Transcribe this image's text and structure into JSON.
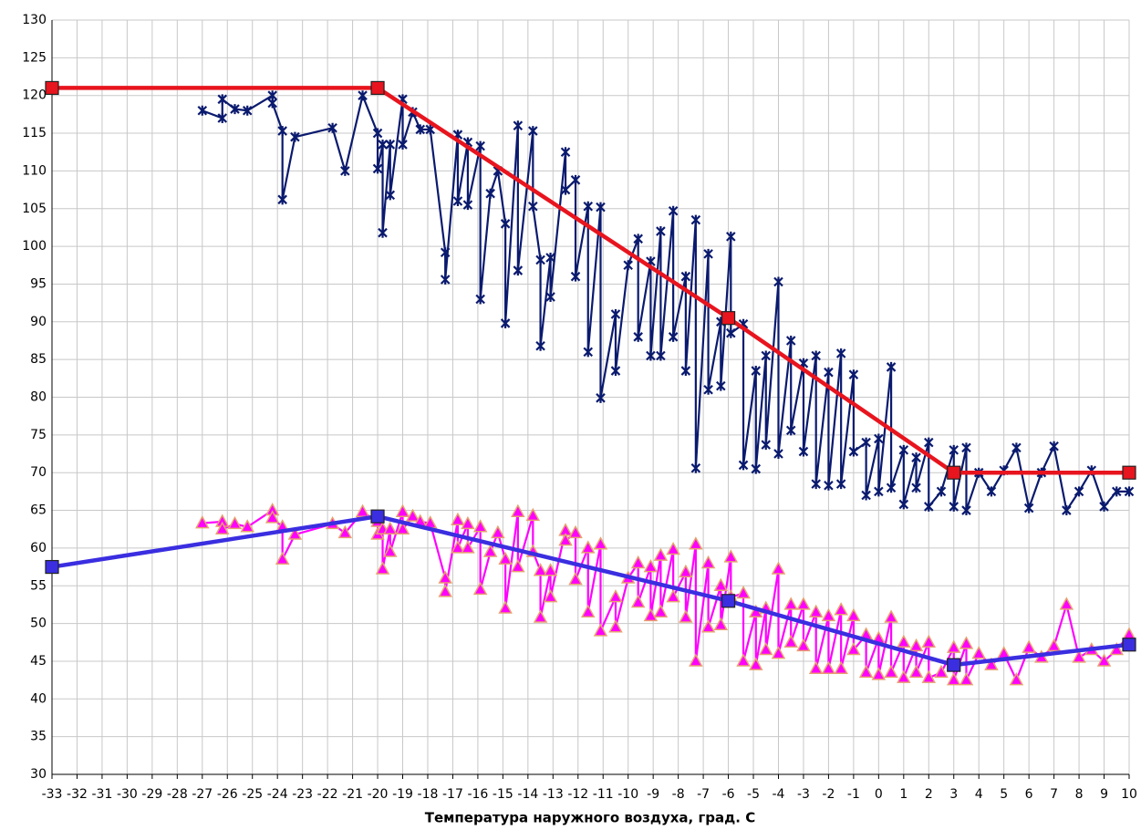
{
  "chart_data": {
    "type": "line",
    "x_label": "Температура наружного воздуха, град. С",
    "xlim": [
      -33,
      10
    ],
    "ylim": [
      30,
      130
    ],
    "xticks": [
      -33,
      -32,
      -31,
      -30,
      -29,
      -28,
      -27,
      -26,
      -25,
      -24,
      -23,
      -22,
      -21,
      -20,
      -19,
      -18,
      -17,
      -16,
      -15,
      -14,
      -13,
      -12,
      -11,
      -10,
      -9,
      -8,
      -7,
      -6,
      -5,
      -4,
      -3,
      -2,
      -1,
      0,
      1,
      2,
      3,
      4,
      5,
      6,
      7,
      8,
      9,
      10
    ],
    "yticks": [
      30,
      35,
      40,
      45,
      50,
      55,
      60,
      65,
      70,
      75,
      80,
      85,
      90,
      95,
      100,
      105,
      110,
      115,
      120,
      125,
      130
    ],
    "grid": true,
    "series": [
      {
        "color": "#0a1a6e",
        "marker": "star",
        "x": [
          -27,
          -26.2,
          -26.2,
          -25.7,
          -25.2,
          -24.2,
          -24.2,
          -23.8,
          -23.8,
          -23.3,
          -21.8,
          -21.3,
          -20.6,
          -20,
          -20,
          -19.8,
          -19.8,
          -19.5,
          -19.5,
          -19,
          -19,
          -18.6,
          -18.3,
          -17.9,
          -17.3,
          -17.3,
          -16.8,
          -16.8,
          -16.4,
          -16.4,
          -15.9,
          -15.9,
          -15.5,
          -15.2,
          -14.9,
          -14.9,
          -14.4,
          -14.4,
          -13.8,
          -13.8,
          -13.5,
          -13.5,
          -13.1,
          -13.1,
          -12.5,
          -12.5,
          -12.1,
          -12.1,
          -11.6,
          -11.6,
          -11.1,
          -11.1,
          -10.5,
          -10.5,
          -10,
          -9.6,
          -9.6,
          -9.1,
          -9.1,
          -8.7,
          -8.7,
          -8.2,
          -8.2,
          -7.7,
          -7.7,
          -7.3,
          -7.3,
          -6.8,
          -6.8,
          -6.3,
          -6.3,
          -5.9,
          -5.9,
          -5.4,
          -5.4,
          -4.9,
          -4.9,
          -4.5,
          -4.5,
          -4,
          -4,
          -3.5,
          -3.5,
          -3,
          -3,
          -2.5,
          -2.5,
          -2,
          -2,
          -1.5,
          -1.5,
          -1,
          -1,
          -0.5,
          -0.5,
          0,
          0,
          0.5,
          0.5,
          1,
          1,
          1.5,
          1.5,
          2,
          2,
          2.5,
          3,
          3,
          3.5,
          3.5,
          4,
          4.5,
          5,
          5.5,
          6,
          6.5,
          7,
          7.5,
          8,
          8.5,
          9,
          9.5,
          10
        ],
        "values": [
          118,
          117,
          119.5,
          118.2,
          118,
          120,
          119,
          115.3,
          106.2,
          114.5,
          115.7,
          110,
          120,
          115,
          110.3,
          113.5,
          101.8,
          113.5,
          106.8,
          119.5,
          113.5,
          117.8,
          115.5,
          115.5,
          99.2,
          95.6,
          114.8,
          106,
          113.8,
          105.5,
          113.3,
          93,
          107,
          110,
          103,
          89.8,
          116,
          96.8,
          115.3,
          105.3,
          98.2,
          86.8,
          98.5,
          93.3,
          112.5,
          107.5,
          108.8,
          96,
          105.3,
          86,
          105.2,
          79.9,
          91,
          83.5,
          97.5,
          101,
          88,
          98,
          85.5,
          102,
          85.5,
          104.7,
          88,
          96,
          83.5,
          103.5,
          70.6,
          99,
          81,
          90,
          81.5,
          101.3,
          88.5,
          89.7,
          71,
          83.5,
          70.5,
          85.5,
          73.7,
          95.3,
          72.5,
          87.5,
          75.6,
          84.5,
          72.8,
          85.5,
          68.5,
          83.3,
          68.3,
          85.8,
          68.5,
          83,
          72.8,
          74,
          67,
          74.5,
          67.5,
          84,
          68,
          73,
          65.8,
          72,
          68,
          74,
          65.5,
          67.5,
          73,
          65.5,
          73.3,
          65,
          70,
          67.5,
          70.3,
          73.3,
          65.3,
          70,
          73.5,
          65,
          67.5,
          70.3,
          65.5,
          67.5,
          67.5
        ]
      },
      {
        "color": "#ff00ff",
        "marker": "triangle",
        "x": [
          -27,
          -26.2,
          -26.2,
          -25.7,
          -25.2,
          -24.2,
          -24.2,
          -23.8,
          -23.8,
          -23.3,
          -21.8,
          -21.3,
          -20.6,
          -20,
          -20,
          -19.8,
          -19.8,
          -19.5,
          -19.5,
          -19,
          -19,
          -18.6,
          -18.3,
          -17.9,
          -17.3,
          -17.3,
          -16.8,
          -16.8,
          -16.4,
          -16.4,
          -15.9,
          -15.9,
          -15.5,
          -15.2,
          -14.9,
          -14.9,
          -14.4,
          -14.4,
          -13.8,
          -13.8,
          -13.5,
          -13.5,
          -13.1,
          -13.1,
          -12.5,
          -12.5,
          -12.1,
          -12.1,
          -11.6,
          -11.6,
          -11.1,
          -11.1,
          -10.5,
          -10.5,
          -10,
          -9.6,
          -9.6,
          -9.1,
          -9.1,
          -8.7,
          -8.7,
          -8.2,
          -8.2,
          -7.7,
          -7.7,
          -7.3,
          -7.3,
          -6.8,
          -6.8,
          -6.3,
          -6.3,
          -5.9,
          -5.9,
          -5.4,
          -5.4,
          -4.9,
          -4.9,
          -4.5,
          -4.5,
          -4,
          -4,
          -3.5,
          -3.5,
          -3,
          -3,
          -2.5,
          -2.5,
          -2,
          -2,
          -1.5,
          -1.5,
          -1,
          -1,
          -0.5,
          -0.5,
          0,
          0,
          0.5,
          0.5,
          1,
          1,
          1.5,
          1.5,
          2,
          2,
          2.5,
          3,
          3,
          3.5,
          3.5,
          4,
          4.5,
          5,
          5.5,
          6,
          6.5,
          7,
          7.5,
          8,
          8.5,
          9,
          9.5,
          10
        ],
        "values": [
          63.3,
          63.5,
          62.5,
          63.2,
          62.8,
          65,
          64,
          62.8,
          58.5,
          61.8,
          63.2,
          62,
          64.8,
          63.5,
          61.8,
          62.5,
          57.2,
          62.5,
          59.5,
          64.8,
          62.5,
          64.2,
          63.5,
          63.3,
          56,
          54.2,
          63.7,
          60,
          63.2,
          60,
          62.8,
          54.5,
          59.5,
          62,
          58.5,
          52,
          64.8,
          57.5,
          64.3,
          59.5,
          57,
          50.8,
          57,
          53.5,
          62.3,
          61,
          62,
          55.8,
          60,
          51.5,
          60.5,
          49,
          53.5,
          49.5,
          56,
          58,
          52.8,
          57.5,
          51,
          59,
          51.5,
          59.8,
          53.5,
          56.8,
          50.8,
          60.5,
          45,
          58,
          49.5,
          55,
          49.8,
          58.8,
          53.5,
          54,
          45,
          51.5,
          44.5,
          52,
          46.5,
          57.2,
          46,
          52.5,
          47.5,
          52.5,
          47,
          51.5,
          44,
          51,
          44,
          51.8,
          44,
          51,
          46.5,
          48.5,
          43.5,
          48,
          43.2,
          50.8,
          43.5,
          47.5,
          42.8,
          47,
          43.5,
          47.5,
          42.8,
          43.5,
          46.8,
          42.5,
          47.3,
          42.5,
          46,
          44.5,
          46,
          42.5,
          46.8,
          45.5,
          47,
          52.5,
          45.5,
          46.5,
          45,
          46.5,
          48.5
        ]
      },
      {
        "color": "#e8141e",
        "marker": "square",
        "x": [
          -33,
          -20,
          -6,
          3,
          10
        ],
        "values": [
          121,
          121,
          90.5,
          70,
          70
        ]
      },
      {
        "color": "#3a2ee0",
        "marker": "square",
        "x": [
          -33,
          -20,
          -6,
          3,
          10
        ],
        "values": [
          57.5,
          64.2,
          53,
          44.5,
          47.2
        ]
      }
    ]
  }
}
